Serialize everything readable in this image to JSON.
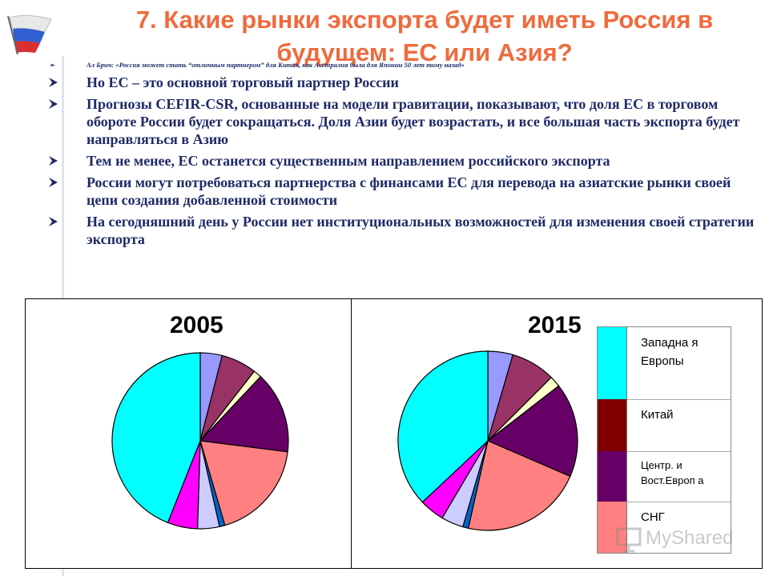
{
  "slide": {
    "title": "7. Какие рынки экспорта будет иметь Россия в будущем: ЕС или Азия?",
    "quote": "Ал Брич: «Россия может стать “отличным партнером” для Китая, как Австралия была для Японии 50 лет тому назад»",
    "bullets": [
      "Но ЕС – это основной торговый партнер России",
      "Прогнозы CEFIR-CSR, основанные на модели гравитации, показывают, что доля ЕС в торговом обороте России будет сокращаться. Доля Азии будет возрастать, и все большая часть экспорта будет направляться в Азию",
      "Тем не менее, ЕС  останется существенным направлением российского экспорта",
      "России могут потребоваться партнерства с финансами ЕС для  перевода на азиатские рынки своей цепи создания добавленной стоимости",
      "На сегодняшний день у России нет институциональных возможностей  для изменения своей стратегии экспорта"
    ],
    "watermark": "MyShared"
  },
  "chart_data": [
    {
      "type": "pie",
      "title": "2005",
      "slices": [
        {
          "value": 4,
          "color": "#9999ff"
        },
        {
          "value": 6.5,
          "color": "#993366"
        },
        {
          "value": 1.5,
          "color": "#ffffcc"
        },
        {
          "value": 15,
          "color": "#660066"
        },
        {
          "value": 18.5,
          "color": "#ff8080"
        },
        {
          "value": 1,
          "color": "#0066cc"
        },
        {
          "value": 4,
          "color": "#ccccff"
        },
        {
          "value": 5.5,
          "color": "#ff00ff"
        },
        {
          "value": 44,
          "color": "#00ffff"
        }
      ]
    },
    {
      "type": "pie",
      "title": "2015",
      "slices": [
        {
          "value": 4.5,
          "color": "#9999ff"
        },
        {
          "value": 8,
          "color": "#993366"
        },
        {
          "value": 2,
          "color": "#ffffcc"
        },
        {
          "value": 17,
          "color": "#660066"
        },
        {
          "value": 22,
          "color": "#ff8080"
        },
        {
          "value": 1,
          "color": "#0066cc"
        },
        {
          "value": 4,
          "color": "#ccccff"
        },
        {
          "value": 4.5,
          "color": "#ff00ff"
        },
        {
          "value": 37,
          "color": "#00ffff"
        }
      ]
    }
  ],
  "legend": {
    "items": [
      {
        "label": "Западна я Европы",
        "color": "#00ffff"
      },
      {
        "label": "Китай",
        "color": "#800000"
      },
      {
        "label": "Центр. и Вост.Европ а",
        "color": "#660066"
      },
      {
        "label": "СНГ",
        "color": "#ff8080"
      }
    ]
  }
}
